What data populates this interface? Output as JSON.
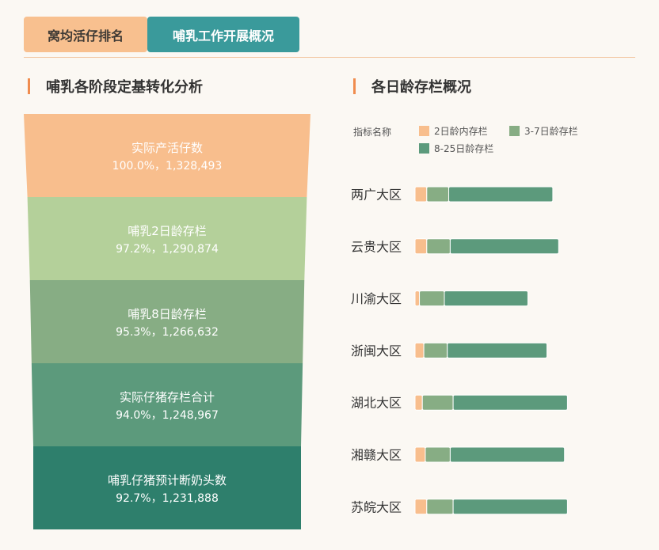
{
  "tabs": {
    "ranking_label": "窝均活仔排名",
    "lactation_label": "哺乳工作开展概况"
  },
  "left_panel": {
    "title": "哺乳各阶段定基转化分析"
  },
  "right_panel": {
    "title": "各日龄存栏概况"
  },
  "colors": {
    "orange": "#f8be8d",
    "light_green": "#b4d09a",
    "sage": "#87ad84",
    "green": "#5c9a7c",
    "teal": "#2e7f6c",
    "accent": "#3a9a9b"
  },
  "chart_data": [
    {
      "type": "funnel",
      "stages": [
        {
          "name": "实际产活仔数",
          "label": "100.0%，1,328,493",
          "percent": 100.0,
          "value": 1328493
        },
        {
          "name": "哺乳2日龄存栏",
          "label": "97.2%，1,290,874",
          "percent": 97.2,
          "value": 1290874
        },
        {
          "name": "哺乳8日龄存栏",
          "label": "95.3%，1,266,632",
          "percent": 95.3,
          "value": 1266632
        },
        {
          "name": "实际仔猪存栏合计",
          "label": "94.0%，1,248,967",
          "percent": 94.0,
          "value": 1248967
        },
        {
          "name": "哺乳仔猪预计断奶头数",
          "label": "92.7%，1,231,888",
          "percent": 92.7,
          "value": 1231888
        }
      ]
    },
    {
      "type": "bar",
      "stacked": true,
      "orientation": "horizontal",
      "legend_title": "指标名称",
      "legend_placement": "top",
      "categories": [
        "两广大区",
        "云贵大区",
        "川渝大区",
        "浙闽大区",
        "湖北大区",
        "湘赣大区",
        "苏皖大区"
      ],
      "series": [
        {
          "name": "2日龄内存栏",
          "values": [
            8,
            8,
            3,
            6,
            5,
            7,
            8
          ]
        },
        {
          "name": "3-7日龄存栏",
          "values": [
            15,
            16,
            17,
            16,
            21,
            17,
            18
          ]
        },
        {
          "name": "8-25日龄存栏",
          "values": [
            71,
            74,
            57,
            68,
            78,
            78,
            78
          ]
        }
      ]
    }
  ]
}
